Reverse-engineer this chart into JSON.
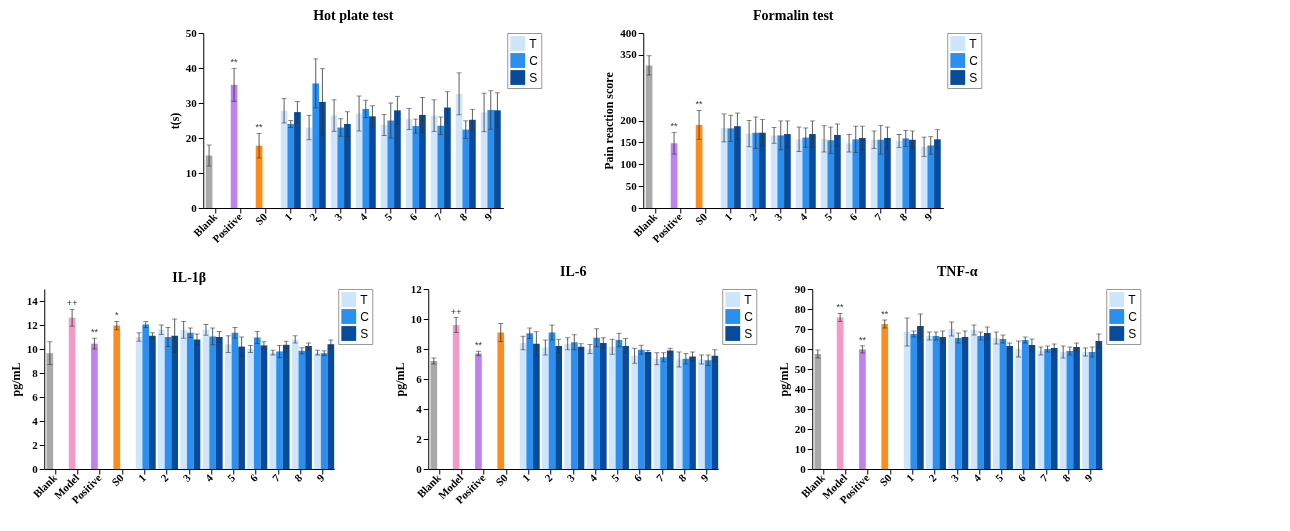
{
  "chart_data": [
    {
      "type": "bar",
      "title": "Hot plate test",
      "ylabel": "t(s)",
      "categories": [
        "Blank",
        "Positive",
        "S0",
        "1",
        "2",
        "3",
        "4",
        "5",
        "6",
        "7",
        "8",
        "9"
      ],
      "ylim": [
        0,
        50
      ],
      "yticks": [
        0,
        10,
        20,
        30,
        40,
        50
      ],
      "legend": "top right",
      "series": [
        {
          "colors": [
            "#a9a9a9",
            "#bf80f0",
            "#ff8c1a",
            null,
            null,
            null,
            null,
            null,
            null,
            null,
            null,
            null
          ],
          "values": [
            15.0,
            35.2,
            17.8,
            null,
            null,
            null,
            null,
            null,
            null,
            null,
            null,
            null
          ],
          "errors": [
            3,
            4.7,
            3.5,
            null,
            null,
            null,
            null,
            null,
            null,
            null,
            null,
            null
          ]
        },
        {
          "name": "T",
          "color": "#cfe5fb",
          "values": [
            null,
            null,
            null,
            27.8,
            23,
            26.4,
            27,
            23.7,
            25.4,
            26.4,
            32.6,
            27.3
          ],
          "errors": [
            null,
            null,
            null,
            3.5,
            3.5,
            4.5,
            5,
            3,
            3,
            4.5,
            6,
            5.5
          ]
        },
        {
          "name": "C",
          "color": "#2b8ff0",
          "values": [
            null,
            null,
            null,
            24,
            35.6,
            23,
            28.3,
            25,
            23.4,
            23.5,
            22.4,
            28
          ],
          "errors": [
            null,
            null,
            null,
            1,
            7,
            2.5,
            2.5,
            5,
            2,
            2.5,
            2.5,
            5.5
          ]
        },
        {
          "name": "S",
          "color": "#0a4a9a",
          "values": [
            null,
            null,
            null,
            27.4,
            30.3,
            24,
            26.2,
            27.9,
            26.6,
            28.7,
            25.2,
            27.9
          ],
          "errors": [
            null,
            null,
            null,
            3,
            9.5,
            3.5,
            3,
            4,
            5,
            4.5,
            3,
            5
          ]
        }
      ],
      "annotations": [
        {
          "text": "**",
          "x": "Positive",
          "y": 40
        },
        {
          "text": "**",
          "x": "S0",
          "y": 21.5
        }
      ]
    },
    {
      "type": "bar",
      "title": "Formalin test",
      "ylabel": "Pain reaction score",
      "categories": [
        "Blank",
        "Positive",
        "S0",
        "1",
        "2",
        "3",
        "4",
        "5",
        "6",
        "7",
        "8",
        "9"
      ],
      "ylim": [
        0,
        400
      ],
      "yticks": [
        0,
        50,
        100,
        150,
        200,
        350,
        400
      ],
      "legend": "top right",
      "series": [
        {
          "colors": [
            "#a9a9a9",
            "#bf80f0",
            "#ff8c1a",
            null,
            null,
            null,
            null,
            null,
            null,
            null,
            null,
            null
          ],
          "values": [
            326,
            148,
            190,
            null,
            null,
            null,
            null,
            null,
            null,
            null,
            null,
            null
          ],
          "errors": [
            22,
            25,
            33,
            null,
            null,
            null,
            null,
            null,
            null,
            null,
            null,
            null
          ]
        },
        {
          "name": "T",
          "color": "#cfe5fb",
          "values": [
            null,
            null,
            null,
            183,
            170,
            166,
            157,
            158,
            148,
            156,
            153,
            140
          ],
          "errors": [
            null,
            null,
            null,
            32,
            30,
            18,
            28,
            30,
            20,
            20,
            15,
            22
          ]
        },
        {
          "name": "C",
          "color": "#2b8ff0",
          "values": [
            null,
            null,
            null,
            182,
            172,
            166,
            161,
            155,
            157,
            156,
            159,
            143
          ],
          "errors": [
            null,
            null,
            null,
            30,
            36,
            33,
            22,
            30,
            30,
            33,
            18,
            20
          ]
        },
        {
          "name": "S",
          "color": "#0a4a9a",
          "values": [
            null,
            null,
            null,
            187,
            172,
            169,
            169,
            167,
            160,
            160,
            156,
            157
          ],
          "errors": [
            null,
            null,
            null,
            30,
            30,
            30,
            30,
            25,
            27,
            25,
            20,
            22
          ]
        }
      ],
      "annotations": [
        {
          "text": "**",
          "x": "Positive",
          "y": 173
        },
        {
          "text": "**",
          "x": "S0",
          "y": 223
        }
      ]
    },
    {
      "type": "bar",
      "title": "IL-1β",
      "ylabel": "pg/mL",
      "categories": [
        "Blank",
        "Model",
        "Positive",
        "S0",
        "1",
        "2",
        "3",
        "4",
        "5",
        "6",
        "7",
        "8",
        "9"
      ],
      "ylim": [
        0,
        15
      ],
      "yticks": [
        0,
        2,
        4,
        6,
        8,
        10,
        12,
        14
      ],
      "legend": "top right",
      "series": [
        {
          "colors": [
            "#a9a9a9",
            "#f49ac9",
            "#bf80f0",
            "#ff8c1a",
            null,
            null,
            null,
            null,
            null,
            null,
            null,
            null,
            null
          ],
          "values": [
            9.65,
            12.6,
            10.45,
            11.95,
            null,
            null,
            null,
            null,
            null,
            null,
            null,
            null,
            null
          ],
          "errors": [
            0.95,
            0.7,
            0.45,
            0.35,
            null,
            null,
            null,
            null,
            null,
            null,
            null,
            null,
            null
          ]
        },
        {
          "name": "T",
          "color": "#cfe5fb",
          "values": [
            null,
            null,
            null,
            null,
            11.0,
            11.6,
            11.6,
            11.6,
            10.4,
            10.0,
            9.7,
            10.8,
            9.7
          ],
          "errors": [
            null,
            null,
            null,
            null,
            0.35,
            0.4,
            0.7,
            0.45,
            0.7,
            0.3,
            0.2,
            0.3,
            0.2
          ]
        },
        {
          "name": "C",
          "color": "#2b8ff0",
          "values": [
            null,
            null,
            null,
            null,
            12.05,
            11.0,
            11.35,
            11.05,
            11.35,
            10.95,
            9.8,
            9.85,
            9.65
          ],
          "errors": [
            null,
            null,
            null,
            null,
            0.25,
            0.8,
            0.4,
            0.7,
            0.45,
            0.5,
            0.5,
            0.25,
            0.2
          ]
        },
        {
          "name": "S",
          "color": "#0a4a9a",
          "values": [
            null,
            null,
            null,
            null,
            11.1,
            11.1,
            10.8,
            11.0,
            10.2,
            10.3,
            10.35,
            10.25,
            10.4
          ],
          "errors": [
            null,
            null,
            null,
            null,
            0.25,
            1.4,
            0.45,
            0.45,
            0.8,
            0.3,
            0.3,
            0.25,
            0.35
          ]
        }
      ],
      "annotations": [
        {
          "text": "++",
          "x": "Model",
          "y": 13.3
        },
        {
          "text": "**",
          "x": "Positive",
          "y": 10.9
        },
        {
          "text": "*",
          "x": "S0",
          "y": 12.3
        }
      ]
    },
    {
      "type": "bar",
      "title": "IL-6",
      "ylabel": "pg/mL",
      "categories": [
        "Blank",
        "Model",
        "Positive",
        "S0",
        "1",
        "2",
        "3",
        "4",
        "5",
        "6",
        "7",
        "8",
        "9"
      ],
      "ylim": [
        0,
        12
      ],
      "yticks": [
        0,
        2,
        4,
        6,
        8,
        10,
        12
      ],
      "legend": "top right",
      "series": [
        {
          "colors": [
            "#a9a9a9",
            "#f49ac9",
            "#bf80f0",
            "#ff8c1a",
            null,
            null,
            null,
            null,
            null,
            null,
            null,
            null,
            null
          ],
          "values": [
            7.2,
            9.6,
            7.7,
            9.1,
            null,
            null,
            null,
            null,
            null,
            null,
            null,
            null,
            null
          ],
          "errors": [
            0.2,
            0.5,
            0.15,
            0.6,
            null,
            null,
            null,
            null,
            null,
            null,
            null,
            null,
            null
          ]
        },
        {
          "name": "T",
          "color": "#cfe5fb",
          "values": [
            null,
            null,
            null,
            null,
            8.4,
            8.1,
            8.35,
            8.0,
            8.15,
            7.55,
            7.35,
            7.3,
            7.3
          ],
          "errors": [
            null,
            null,
            null,
            null,
            0.45,
            0.5,
            0.4,
            0.3,
            0.5,
            0.5,
            0.4,
            0.5,
            0.3
          ]
        },
        {
          "name": "C",
          "color": "#2b8ff0",
          "values": [
            null,
            null,
            null,
            null,
            9.05,
            9.1,
            8.45,
            8.75,
            8.6,
            7.95,
            7.45,
            7.35,
            7.25
          ],
          "errors": [
            null,
            null,
            null,
            null,
            0.35,
            0.5,
            0.5,
            0.6,
            0.45,
            0.3,
            0.3,
            0.35,
            0.35
          ]
        },
        {
          "name": "S",
          "color": "#0a4a9a",
          "values": [
            null,
            null,
            null,
            null,
            8.35,
            8.2,
            8.15,
            8.4,
            8.2,
            7.8,
            7.9,
            7.5,
            7.55
          ],
          "errors": [
            null,
            null,
            null,
            null,
            0.8,
            0.45,
            0.2,
            0.35,
            0.5,
            0.1,
            0.15,
            0.3,
            0.4
          ]
        }
      ],
      "annotations": [
        {
          "text": "++",
          "x": "Model",
          "y": 10.1
        },
        {
          "text": "**",
          "x": "Positive",
          "y": 7.85
        }
      ]
    },
    {
      "type": "bar",
      "title": "TNF-α",
      "ylabel": "pg/mL",
      "categories": [
        "Blank",
        "Model",
        "Positive",
        "S0",
        "1",
        "2",
        "3",
        "4",
        "5",
        "6",
        "7",
        "8",
        "9"
      ],
      "ylim": [
        0,
        90
      ],
      "yticks": [
        0,
        10,
        20,
        30,
        40,
        50,
        60,
        70,
        80,
        90
      ],
      "legend": "top right",
      "series": [
        {
          "colors": [
            "#a9a9a9",
            "#f49ac9",
            "#bf80f0",
            "#ff8c1a",
            null,
            null,
            null,
            null,
            null,
            null,
            null,
            null,
            null
          ],
          "values": [
            57.5,
            75.8,
            59.8,
            72.5,
            null,
            null,
            null,
            null,
            null,
            null,
            null,
            null,
            null
          ],
          "errors": [
            2,
            2,
            1.8,
            2,
            null,
            null,
            null,
            null,
            null,
            null,
            null,
            null,
            null
          ]
        },
        {
          "name": "T",
          "color": "#cfe5fb",
          "values": [
            null,
            null,
            null,
            null,
            68.5,
            66.5,
            70,
            69.5,
            65.5,
            60,
            59,
            58.5,
            58.5
          ],
          "errors": [
            null,
            null,
            null,
            null,
            7,
            2,
            3.5,
            2.5,
            3,
            4,
            2,
            3,
            2
          ]
        },
        {
          "name": "C",
          "color": "#2b8ff0",
          "values": [
            null,
            null,
            null,
            null,
            67.5,
            66.5,
            65.5,
            66.5,
            65,
            64.5,
            60,
            59,
            58.5
          ],
          "errors": [
            null,
            null,
            null,
            null,
            1.5,
            2,
            2.5,
            2,
            2,
            1.5,
            1.5,
            2,
            2.5
          ]
        },
        {
          "name": "S",
          "color": "#0a4a9a",
          "values": [
            null,
            null,
            null,
            null,
            71.5,
            66,
            66,
            68,
            61.5,
            62,
            60.5,
            61,
            64
          ],
          "errors": [
            null,
            null,
            null,
            null,
            6,
            3,
            3,
            3,
            1.5,
            3,
            2,
            2,
            3.5
          ]
        }
      ],
      "annotations": [
        {
          "text": "**",
          "x": "Model",
          "y": 77.8
        },
        {
          "text": "**",
          "x": "Positive",
          "y": 61.6
        },
        {
          "text": "**",
          "x": "S0",
          "y": 74.5
        }
      ]
    }
  ]
}
